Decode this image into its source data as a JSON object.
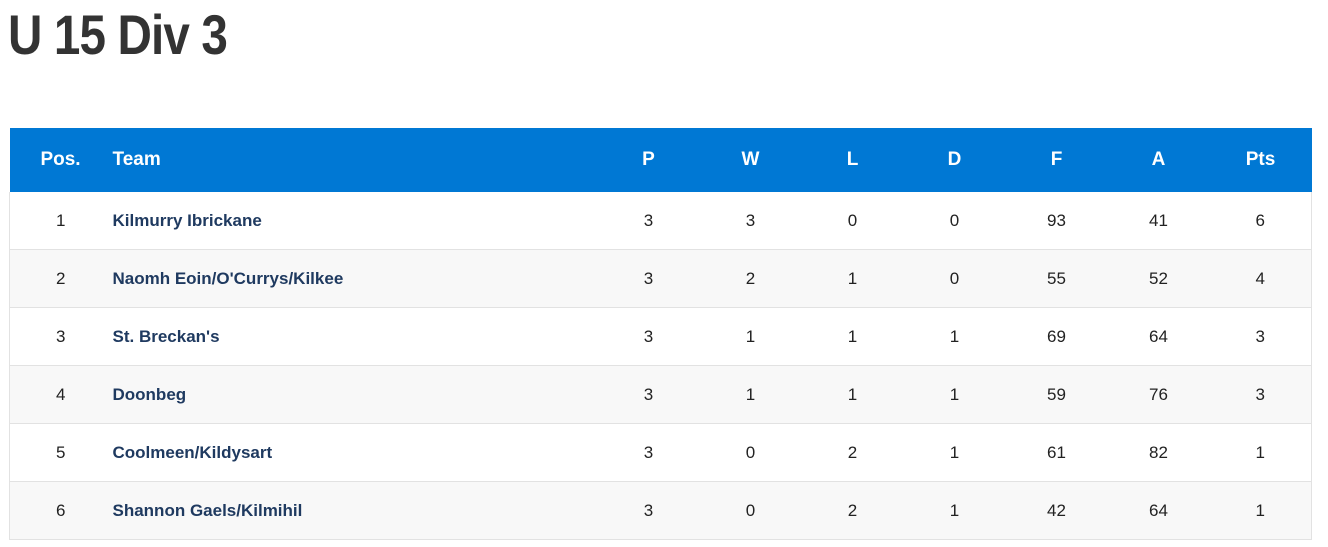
{
  "header": {
    "title": "U 15 Div 3"
  },
  "table": {
    "columns": [
      "Pos.",
      "Team",
      "P",
      "W",
      "L",
      "D",
      "F",
      "A",
      "Pts"
    ],
    "rows": [
      [
        "1",
        "Kilmurry Ibrickane",
        "3",
        "3",
        "0",
        "0",
        "93",
        "41",
        "6"
      ],
      [
        "2",
        "Naomh Eoin/O'Currys/Kilkee",
        "3",
        "2",
        "1",
        "0",
        "55",
        "52",
        "4"
      ],
      [
        "3",
        "St. Breckan's",
        "3",
        "1",
        "1",
        "1",
        "69",
        "64",
        "3"
      ],
      [
        "4",
        "Doonbeg",
        "3",
        "1",
        "1",
        "1",
        "59",
        "76",
        "3"
      ],
      [
        "5",
        "Coolmeen/Kildysart",
        "3",
        "0",
        "2",
        "1",
        "61",
        "82",
        "1"
      ],
      [
        "6",
        "Shannon Gaels/Kilmihil",
        "3",
        "0",
        "2",
        "1",
        "42",
        "64",
        "1"
      ]
    ]
  }
}
